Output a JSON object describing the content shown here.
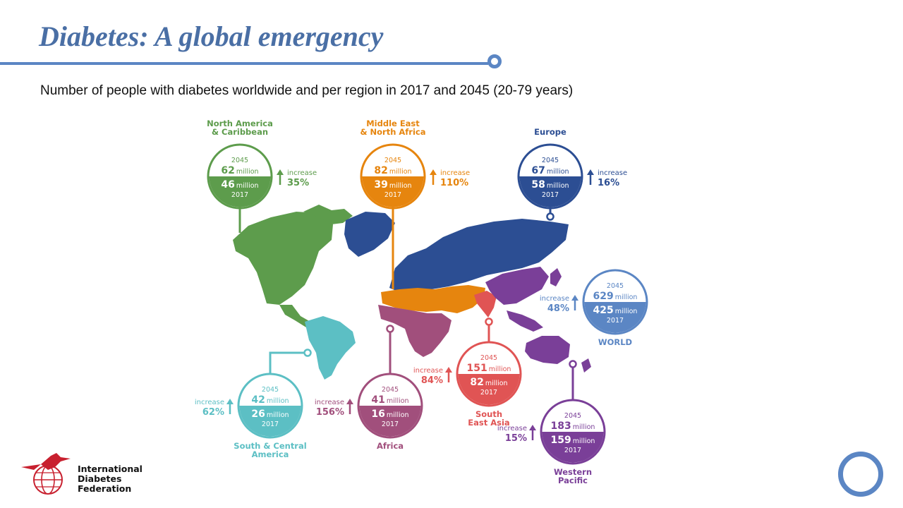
{
  "slide": {
    "title": "Diabetes: A global emergency",
    "subtitle": "Number of people with diabetes worldwide and per region in 2017 and 2045 (20-79 years)"
  },
  "labels": {
    "year_future": "2045",
    "year_current": "2017",
    "unit": "million",
    "increase": "increase"
  },
  "regions": [
    {
      "key": "north_america",
      "name_lines": [
        "North America",
        "& Caribbean"
      ],
      "value_2045": "62",
      "value_2017": "46",
      "increase_pct": "35%",
      "color": "#5d9c4c"
    },
    {
      "key": "mena",
      "name_lines": [
        "Middle East",
        "& North Africa"
      ],
      "value_2045": "82",
      "value_2017": "39",
      "increase_pct": "110%",
      "color": "#e6850e"
    },
    {
      "key": "europe",
      "name_lines": [
        "Europe"
      ],
      "value_2045": "67",
      "value_2017": "58",
      "increase_pct": "16%",
      "color": "#2c4e93"
    },
    {
      "key": "world",
      "name_lines": [
        "WORLD"
      ],
      "value_2045": "629",
      "value_2017": "425",
      "increase_pct": "48%",
      "color": "#5b86c4"
    },
    {
      "key": "south_central_america",
      "name_lines": [
        "South & Central",
        "America"
      ],
      "value_2045": "42",
      "value_2017": "26",
      "increase_pct": "62%",
      "color": "#5cbfc4"
    },
    {
      "key": "africa",
      "name_lines": [
        "Africa"
      ],
      "value_2045": "41",
      "value_2017": "16",
      "increase_pct": "156%",
      "color": "#a14f7c"
    },
    {
      "key": "south_east_asia",
      "name_lines": [
        "South",
        "East Asia"
      ],
      "value_2045": "151",
      "value_2017": "82",
      "increase_pct": "84%",
      "color": "#e05454"
    },
    {
      "key": "western_pacific",
      "name_lines": [
        "Western",
        "Pacific"
      ],
      "value_2045": "183",
      "value_2017": "159",
      "increase_pct": "15%",
      "color": "#7a3f98"
    }
  ],
  "logo": {
    "org_lines": [
      "International",
      "Diabetes",
      "Federation"
    ],
    "accent_color": "#c8202f"
  },
  "brand_color": "#5b86c4"
}
